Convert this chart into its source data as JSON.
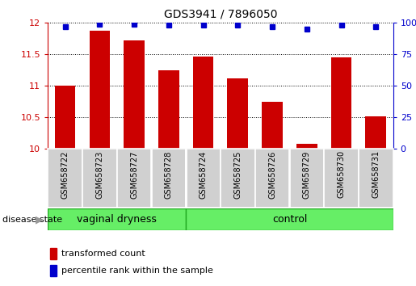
{
  "title": "GDS3941 / 7896050",
  "samples": [
    "GSM658722",
    "GSM658723",
    "GSM658727",
    "GSM658728",
    "GSM658724",
    "GSM658725",
    "GSM658726",
    "GSM658729",
    "GSM658730",
    "GSM658731"
  ],
  "bar_values": [
    11.0,
    11.88,
    11.72,
    11.25,
    11.46,
    11.12,
    10.75,
    10.08,
    11.45,
    10.52
  ],
  "percentile_values": [
    97,
    99,
    99,
    98,
    98,
    98,
    97,
    95,
    98,
    97
  ],
  "ylim_left": [
    10,
    12
  ],
  "ylim_right": [
    0,
    100
  ],
  "yticks_left": [
    10,
    10.5,
    11,
    11.5,
    12
  ],
  "yticks_right": [
    0,
    25,
    50,
    75,
    100
  ],
  "bar_color": "#cc0000",
  "dot_color": "#0000cc",
  "vag_group_count": 4,
  "ctrl_group_count": 6,
  "group_color": "#66ee66",
  "group_border_color": "#22aa22",
  "label_bg_color": "#d0d0d0",
  "disease_state_label": "disease state",
  "legend_bar_label": "transformed count",
  "legend_dot_label": "percentile rank within the sample",
  "background_color": "#ffffff",
  "title_fontsize": 10,
  "tick_fontsize": 8,
  "sample_fontsize": 7,
  "group_fontsize": 9,
  "legend_fontsize": 8
}
